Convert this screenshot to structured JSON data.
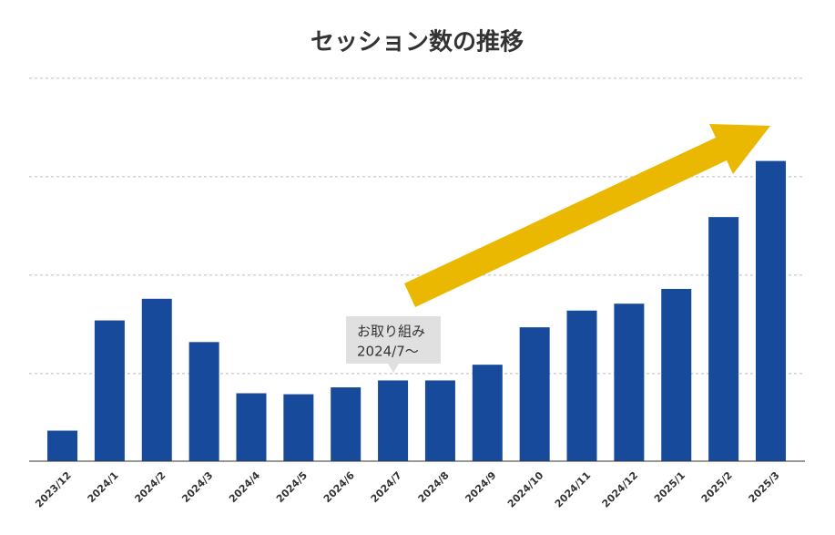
{
  "chart_data": {
    "type": "bar",
    "title": "セッション数の推移",
    "categories": [
      "2023/12",
      "2024/1",
      "2024/2",
      "2024/3",
      "2024/4",
      "2024/5",
      "2024/6",
      "2024/7",
      "2024/8",
      "2024/9",
      "2024/10",
      "2024/11",
      "2024/12",
      "2025/1",
      "2025/2",
      "2025/3"
    ],
    "values": [
      31,
      143,
      165,
      121,
      69,
      68,
      75,
      82,
      82,
      98,
      136,
      153,
      160,
      175,
      248,
      305
    ],
    "color": "#174a9a",
    "ylim": [
      0,
      400
    ],
    "yticks": [
      89,
      189,
      289,
      389
    ],
    "grid": true,
    "annotation": [
      "お取り組み",
      "2024/7〜"
    ]
  }
}
